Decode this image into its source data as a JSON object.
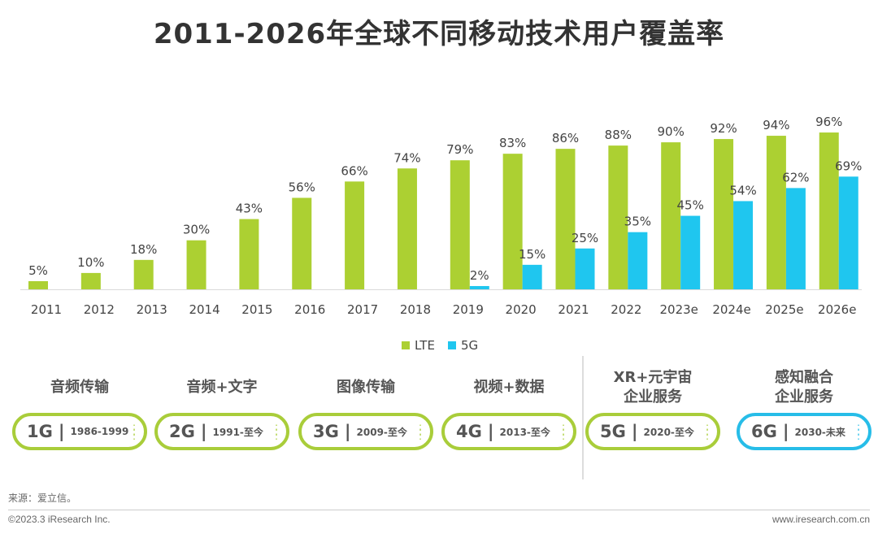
{
  "chart_data": {
    "type": "bar",
    "title": "2011-2026年全球不同移动技术用户覆盖率",
    "categories": [
      "2011",
      "2012",
      "2013",
      "2014",
      "2015",
      "2016",
      "2017",
      "2018",
      "2019",
      "2020",
      "2021",
      "2022",
      "2023e",
      "2024e",
      "2025e",
      "2026e"
    ],
    "series": [
      {
        "name": "LTE",
        "color": "#acd032",
        "values": [
          5,
          10,
          18,
          30,
          43,
          56,
          66,
          74,
          79,
          83,
          86,
          88,
          90,
          92,
          94,
          96
        ]
      },
      {
        "name": "5G",
        "color": "#1fc6ef",
        "values": [
          null,
          null,
          null,
          null,
          null,
          null,
          null,
          null,
          2,
          15,
          25,
          35,
          45,
          54,
          62,
          69
        ]
      }
    ],
    "value_suffix": "%",
    "ylim": [
      0,
      100
    ],
    "grid": false,
    "legend": "bottom-center"
  },
  "generations": [
    {
      "heading": "音频传输",
      "gen": "1G",
      "years": "1986-1999",
      "color": "green"
    },
    {
      "heading": "音频+文字",
      "gen": "2G",
      "years": "1991-至今",
      "color": "green"
    },
    {
      "heading": "图像传输",
      "gen": "3G",
      "years": "2009-至今",
      "color": "green"
    },
    {
      "heading": "视频+数据",
      "gen": "4G",
      "years": "2013-至今",
      "color": "green"
    },
    {
      "heading": "XR+元宇宙\n企业服务",
      "gen": "5G",
      "years": "2020-至今",
      "color": "green"
    },
    {
      "heading": "感知融合\n企业服务",
      "gen": "6G",
      "years": "2030-未来",
      "color": "blue"
    }
  ],
  "separator": "|",
  "footer": {
    "source": "来源：爱立信。",
    "copyright": "©2023.3 iResearch Inc.",
    "url": "www.iresearch.com.cn"
  }
}
